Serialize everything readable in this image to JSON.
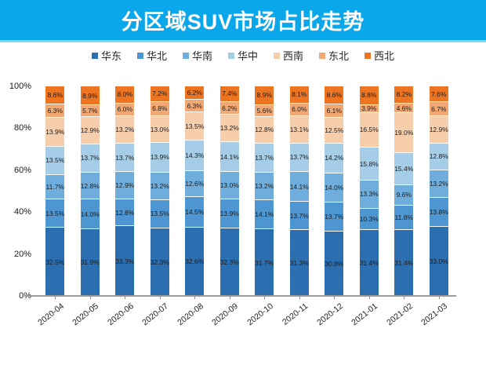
{
  "header": {
    "title": "分区域SUV市场占比走势",
    "banner_color": "#0BA7EB",
    "banner_edge_color": "#85D2F3",
    "title_color": "#FFFFFF"
  },
  "chart_data": {
    "type": "bar",
    "variant": "stacked-100-percent",
    "title": "分区域SUV市场占比走势",
    "grid": false,
    "legend_position": "top",
    "value_suffix": "%",
    "ylim": [
      0,
      100
    ],
    "yticks": [
      "0%",
      "20%",
      "40%",
      "60%",
      "80%",
      "100%"
    ],
    "categories": [
      "2020-04",
      "2020-05",
      "2020-06",
      "2020-07",
      "2020-08",
      "2020-09",
      "2020-10",
      "2020-11",
      "2020-12",
      "2021-01",
      "2021-02",
      "2021-03"
    ],
    "series": [
      {
        "name": "华东",
        "color": "#2C6FB0",
        "values": [
          32.5,
          31.9,
          33.3,
          32.3,
          32.6,
          32.3,
          31.7,
          31.3,
          30.8,
          31.4,
          31.4,
          33.0
        ]
      },
      {
        "name": "华北",
        "color": "#4D96D2",
        "values": [
          13.5,
          14.0,
          12.8,
          13.5,
          14.5,
          13.9,
          14.1,
          13.7,
          13.7,
          10.3,
          11.8,
          13.8
        ]
      },
      {
        "name": "华南",
        "color": "#6FAEDC",
        "values": [
          11.7,
          12.8,
          12.9,
          13.2,
          12.6,
          13.0,
          13.2,
          14.1,
          14.0,
          13.3,
          9.6,
          13.2
        ]
      },
      {
        "name": "华中",
        "color": "#A5CDE7",
        "values": [
          13.5,
          13.7,
          13.7,
          13.9,
          14.3,
          14.1,
          13.7,
          13.7,
          14.2,
          15.8,
          15.4,
          12.8
        ]
      },
      {
        "name": "西南",
        "color": "#F7CEAC",
        "values": [
          13.9,
          12.9,
          13.2,
          13.0,
          13.5,
          13.2,
          12.8,
          13.1,
          12.5,
          16.5,
          19.0,
          12.9
        ]
      },
      {
        "name": "东北",
        "color": "#F2A873",
        "values": [
          6.3,
          5.7,
          6.0,
          6.8,
          6.3,
          6.2,
          5.6,
          6.0,
          6.1,
          3.9,
          4.6,
          6.7
        ]
      },
      {
        "name": "西北",
        "color": "#ED7420",
        "values": [
          8.6,
          8.9,
          8.0,
          7.2,
          6.2,
          7.4,
          8.9,
          8.1,
          8.6,
          8.8,
          8.2,
          7.6
        ]
      }
    ],
    "axis_line_color": "#9B9B9B",
    "label_text_color": "#1C1C1C"
  }
}
